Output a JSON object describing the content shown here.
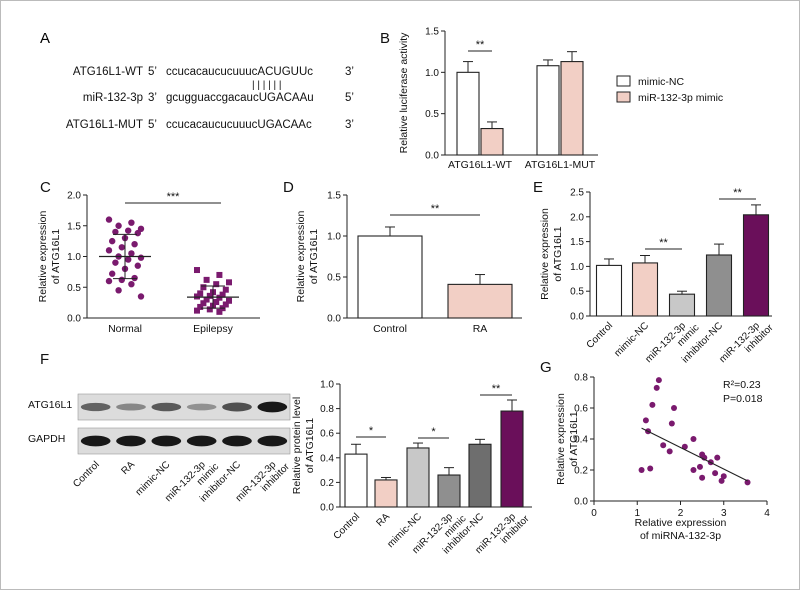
{
  "colors": {
    "mimic_nc": "#ffffff",
    "mimic": "#f2cfc5",
    "inhibitor_nc": "#8f8f8f",
    "inhibitor": "#6a0f5a",
    "control_gray": "#c8c8c8",
    "scatter": "#7a1a6e",
    "axis": "#222222"
  },
  "panels": {
    "A": {
      "letter": "A",
      "rows": [
        {
          "name": "ATG16L1-WT",
          "prime5": "5’",
          "seq": "ccucacaucucuuucACUGUUc",
          "prime3": "3’"
        },
        {
          "name": "miR-132-3p",
          "prime5": "3’",
          "seq": "gcugguaccgacaucUGACAAu",
          "prime3": "5’"
        },
        {
          "name": "ATG16L1-MUT",
          "prime5": "5’",
          "seq": "ccucacaucucuuucUGACAAc",
          "prime3": "3’"
        }
      ],
      "pairing": "| | | | | |"
    }
  },
  "chart_data": [
    {
      "panel": "B",
      "type": "bar",
      "letter": "B",
      "ylabel": "Relative luciferase activity",
      "ylim": [
        0,
        1.5
      ],
      "yticks": [
        "0.0",
        "0.5",
        "1.0",
        "1.5"
      ],
      "categories": [
        "ATG16L1-WT",
        "ATG16L1-MUT"
      ],
      "series": [
        {
          "name": "mimic-NC",
          "values": [
            1.0,
            1.08
          ],
          "errors": [
            0.13,
            0.07
          ]
        },
        {
          "name": "miR-132-3p mimic",
          "values": [
            0.32,
            1.13
          ],
          "errors": [
            0.08,
            0.12
          ]
        }
      ],
      "significance": [
        "**"
      ],
      "legend": "right"
    },
    {
      "panel": "C",
      "type": "scatter",
      "letter": "C",
      "ylabel": "Relative expression of ATG16L1",
      "ylim": [
        0,
        2.0
      ],
      "yticks": [
        "0.0",
        "0.5",
        "1.0",
        "1.5",
        "2.0"
      ],
      "categories": [
        "Normal",
        "Epilepsy"
      ],
      "groups": [
        {
          "name": "Normal",
          "mean": 1.0,
          "sd": 0.36,
          "values": [
            1.6,
            1.55,
            1.5,
            1.45,
            1.42,
            1.4,
            1.38,
            1.3,
            1.25,
            1.2,
            1.15,
            1.1,
            1.05,
            1.0,
            0.98,
            0.95,
            0.9,
            0.85,
            0.8,
            0.72,
            0.65,
            0.62,
            0.6,
            0.55,
            0.45,
            0.35
          ]
        },
        {
          "name": "Epilepsy",
          "mean": 0.34,
          "sd": 0.18,
          "values": [
            0.78,
            0.7,
            0.62,
            0.58,
            0.55,
            0.5,
            0.46,
            0.42,
            0.4,
            0.38,
            0.36,
            0.35,
            0.33,
            0.3,
            0.28,
            0.26,
            0.24,
            0.22,
            0.2,
            0.18,
            0.16,
            0.14,
            0.12,
            0.1
          ]
        }
      ],
      "significance": "***"
    },
    {
      "panel": "D",
      "type": "bar",
      "letter": "D",
      "ylabel": "Relative expression of ATG16L1",
      "ylim": [
        0,
        1.5
      ],
      "yticks": [
        "0.0",
        "0.5",
        "1.0",
        "1.5"
      ],
      "categories": [
        "Control",
        "RA"
      ],
      "values": [
        1.0,
        0.41
      ],
      "errors": [
        0.11,
        0.12
      ],
      "significance": "**"
    },
    {
      "panel": "E",
      "type": "bar",
      "letter": "E",
      "ylabel": "Relative expression of ATG16L1",
      "ylim": [
        0,
        2.5
      ],
      "yticks": [
        "0.0",
        "0.5",
        "1.0",
        "1.5",
        "2.0",
        "2.5"
      ],
      "categories": [
        "Control",
        "mimic-NC",
        "miR-132-3p mimic",
        "inhibitor-NC",
        "miR-132-3p inhibitor"
      ],
      "values": [
        1.02,
        1.07,
        0.44,
        1.23,
        2.04
      ],
      "errors": [
        0.13,
        0.15,
        0.06,
        0.22,
        0.2
      ],
      "significance": [
        "**",
        "**"
      ]
    },
    {
      "panel": "F",
      "type": "bar",
      "letter": "F",
      "ylabel": "Relative protein level of ATG16L1",
      "ylim": [
        0,
        1.0
      ],
      "yticks": [
        "0.0",
        "0.2",
        "0.4",
        "0.6",
        "0.8",
        "1.0"
      ],
      "categories": [
        "Control",
        "RA",
        "mimic-NC",
        "miR-132-3p mimic",
        "inhibitor-NC",
        "miR-132-3p inhibitor"
      ],
      "values": [
        0.43,
        0.22,
        0.48,
        0.26,
        0.51,
        0.78
      ],
      "errors": [
        0.08,
        0.02,
        0.04,
        0.06,
        0.04,
        0.09
      ],
      "significance": [
        "*",
        "*",
        "**"
      ],
      "blot": {
        "rows": [
          "ATG16L1",
          "GAPDH"
        ],
        "lanes": [
          "Control",
          "RA",
          "mimic-NC",
          "miR-132-3p mimic",
          "inhibitor-NC",
          "miR-132-3p inhibitor"
        ],
        "band_intensity": [
          [
            0.55,
            0.35,
            0.6,
            0.3,
            0.65,
            0.95
          ],
          [
            0.95,
            0.95,
            0.95,
            0.95,
            0.95,
            0.95
          ]
        ]
      }
    },
    {
      "panel": "G",
      "type": "scatter",
      "letter": "G",
      "xlabel": "Relative expression of miRNA-132-3p",
      "ylabel": "Relative expression of ATG16L1",
      "xlim": [
        0,
        4
      ],
      "ylim": [
        0,
        0.8
      ],
      "xticks": [
        "0",
        "1",
        "2",
        "3",
        "4"
      ],
      "yticks": [
        "0.0",
        "0.2",
        "0.4",
        "0.6",
        "0.8"
      ],
      "annotations": [
        "R²=0.23",
        "P=0.018"
      ],
      "points": [
        [
          1.5,
          0.78
        ],
        [
          1.45,
          0.73
        ],
        [
          1.35,
          0.62
        ],
        [
          1.85,
          0.6
        ],
        [
          1.2,
          0.52
        ],
        [
          1.8,
          0.5
        ],
        [
          1.25,
          0.45
        ],
        [
          2.3,
          0.4
        ],
        [
          1.6,
          0.36
        ],
        [
          2.1,
          0.35
        ],
        [
          1.75,
          0.32
        ],
        [
          2.5,
          0.3
        ],
        [
          2.55,
          0.28
        ],
        [
          2.85,
          0.28
        ],
        [
          2.7,
          0.25
        ],
        [
          2.45,
          0.22
        ],
        [
          1.3,
          0.21
        ],
        [
          1.1,
          0.2
        ],
        [
          2.3,
          0.2
        ],
        [
          2.8,
          0.18
        ],
        [
          3.0,
          0.16
        ],
        [
          2.95,
          0.13
        ],
        [
          2.5,
          0.15
        ],
        [
          3.55,
          0.12
        ]
      ],
      "fit": {
        "x0": 1.1,
        "y0": 0.47,
        "x1": 3.55,
        "y1": 0.13
      }
    }
  ]
}
